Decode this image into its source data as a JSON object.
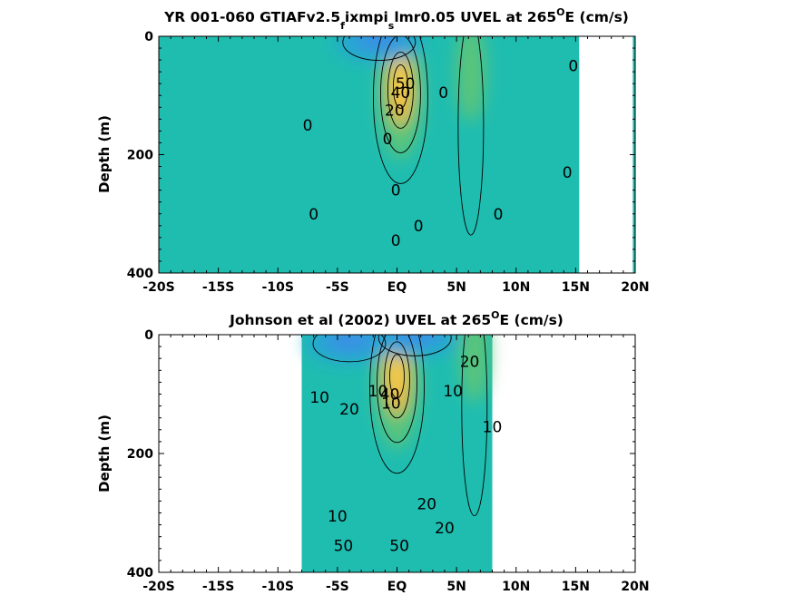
{
  "colors": {
    "background": "#1fbdb0",
    "strong_westward": "#3a8ee6",
    "westward": "#26a6d3",
    "eastward": "#5cc47a",
    "strong_eastward": "#f2b637",
    "core": "#f7d04b",
    "contour": "#000000",
    "nodata": "#ffffff"
  },
  "chart_data": [
    {
      "type": "heatmap",
      "title_main": "YR 001-060 GTIAFv2.5",
      "title_sub1": "f",
      "title_mid": "ixmpi",
      "title_sub2": "s",
      "title_tail": "lmr0.05 UVEL at 265",
      "title_sup": "O",
      "title_end": "E (cm/s)",
      "ylabel": "Depth (m)",
      "xlim": [
        -20,
        20
      ],
      "ylim": [
        400,
        0
      ],
      "y_reversed": true,
      "grid": false,
      "x_ticks": [
        -20,
        -15,
        -10,
        -5,
        0,
        5,
        10,
        15,
        20
      ],
      "x_tick_labels": [
        "-20S",
        "-15S",
        "-10S",
        "-5S",
        "EQ",
        "5N",
        "10N",
        "15N",
        "20N"
      ],
      "y_ticks": [
        0,
        200,
        400
      ],
      "y_tick_labels": [
        "0",
        "200",
        "400"
      ],
      "data_lat_range": [
        -20,
        20
      ],
      "missing_regions": [
        {
          "lat": [
            15.3,
            19.8
          ],
          "depth": [
            0,
            400
          ]
        },
        {
          "lat": [
            15.3,
            16.0
          ],
          "depth": [
            0,
            30
          ]
        }
      ],
      "features": [
        {
          "kind": "eastward_core",
          "lat": 0.3,
          "depth": 85,
          "max": 55
        },
        {
          "kind": "westward_surface",
          "lat": -1.5,
          "depth": 10,
          "min": -20
        },
        {
          "kind": "eastward_band",
          "lat": 6.2,
          "depth": 60,
          "max": 10
        }
      ],
      "contour_labels": [
        {
          "text": "0",
          "lat": -7.5,
          "depth": 150
        },
        {
          "text": "0",
          "lat": -7.0,
          "depth": 300
        },
        {
          "text": "0",
          "lat": 14.8,
          "depth": 50
        },
        {
          "text": "0",
          "lat": 14.3,
          "depth": 230
        },
        {
          "text": "0",
          "lat": 8.5,
          "depth": 300
        },
        {
          "text": "0",
          "lat": 1.8,
          "depth": 320
        },
        {
          "text": "0",
          "lat": -0.1,
          "depth": 345
        },
        {
          "text": "0",
          "lat": -0.1,
          "depth": 260
        },
        {
          "text": "0",
          "lat": -0.8,
          "depth": 173
        },
        {
          "text": "0",
          "lat": 3.9,
          "depth": 95
        },
        {
          "text": "20",
          "lat": -0.2,
          "depth": 125
        },
        {
          "text": "40",
          "lat": 0.3,
          "depth": 95
        },
        {
          "text": "50",
          "lat": 0.7,
          "depth": 80
        }
      ]
    },
    {
      "type": "heatmap",
      "title_main": "Johnson et al (2002) UVEL at 265",
      "title_sup": "O",
      "title_end": "E (cm/s)",
      "ylabel": "Depth (m)",
      "xlim": [
        -20,
        20
      ],
      "ylim": [
        400,
        0
      ],
      "y_reversed": true,
      "grid": false,
      "x_ticks": [
        -20,
        -15,
        -10,
        -5,
        0,
        5,
        10,
        15,
        20
      ],
      "x_tick_labels": [
        "-20S",
        "-15S",
        "-10S",
        "-5S",
        "EQ",
        "5N",
        "10N",
        "15N",
        "20N"
      ],
      "y_ticks": [
        0,
        200,
        400
      ],
      "y_tick_labels": [
        "0",
        "200",
        "400"
      ],
      "data_lat_range": [
        -8,
        8
      ],
      "missing_regions": [],
      "features": [
        {
          "kind": "eastward_core",
          "lat": 0.0,
          "depth": 70,
          "max": 45
        },
        {
          "kind": "westward_surface",
          "lat": -4.0,
          "depth": 15,
          "min": -25
        },
        {
          "kind": "westward_surface",
          "lat": 1.5,
          "depth": 5,
          "min": -25
        },
        {
          "kind": "eastward_band",
          "lat": 6.5,
          "depth": 30,
          "max": 25
        }
      ],
      "contour_labels": [
        {
          "text": "10",
          "lat": -6.5,
          "depth": 105
        },
        {
          "text": "20",
          "lat": -4.0,
          "depth": 125
        },
        {
          "text": "10",
          "lat": -1.6,
          "depth": 95
        },
        {
          "text": "40",
          "lat": -0.6,
          "depth": 100
        },
        {
          "text": "10",
          "lat": -0.5,
          "depth": 115
        },
        {
          "text": "10",
          "lat": 4.7,
          "depth": 95
        },
        {
          "text": "20",
          "lat": 6.1,
          "depth": 45
        },
        {
          "text": "10",
          "lat": 8.0,
          "depth": 155
        },
        {
          "text": "10",
          "lat": -5.0,
          "depth": 305
        },
        {
          "text": "20",
          "lat": 2.5,
          "depth": 285
        },
        {
          "text": "20",
          "lat": 4.0,
          "depth": 325
        },
        {
          "text": "50",
          "lat": -4.5,
          "depth": 355
        },
        {
          "text": "50",
          "lat": 0.2,
          "depth": 355
        }
      ]
    }
  ]
}
